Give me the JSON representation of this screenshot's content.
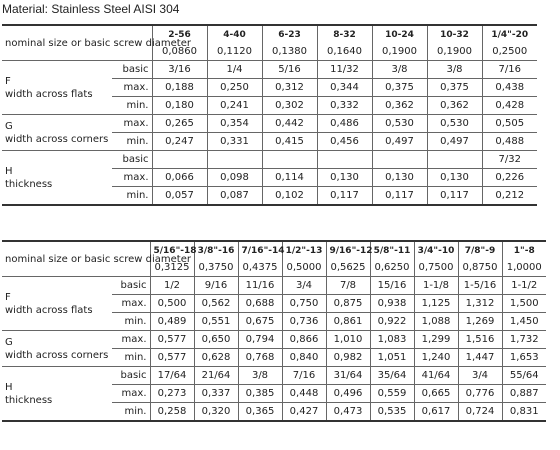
{
  "header": {
    "title": "Material: Stainless Steel AISI 304"
  },
  "tables": [
    {
      "header_label": "nominal size or basic screw diameter",
      "sizes": [
        "2-56",
        "4-40",
        "6-23",
        "8-32",
        "10-24",
        "10-32",
        "1/4\"-20"
      ],
      "diameters": [
        "0,0860",
        "0,1120",
        "0,1380",
        "0,1640",
        "0,1900",
        "0,1900",
        "0,2500"
      ],
      "groups": [
        {
          "label": "F",
          "description": "width across flats",
          "rows": [
            {
              "label": "basic",
              "values": [
                "3/16",
                "1/4",
                "5/16",
                "11/32",
                "3/8",
                "3/8",
                "7/16"
              ]
            },
            {
              "label": "max.",
              "values": [
                "0,188",
                "0,250",
                "0,312",
                "0,344",
                "0,375",
                "0,375",
                "0,438"
              ]
            },
            {
              "label": "min.",
              "values": [
                "0,180",
                "0,241",
                "0,302",
                "0,332",
                "0,362",
                "0,362",
                "0,428"
              ]
            }
          ]
        },
        {
          "label": "G",
          "description": "width across corners",
          "rows": [
            {
              "label": "max.",
              "values": [
                "0,265",
                "0,354",
                "0,442",
                "0,486",
                "0,530",
                "0,530",
                "0,505"
              ]
            },
            {
              "label": "min.",
              "values": [
                "0,247",
                "0,331",
                "0,415",
                "0,456",
                "0,497",
                "0,497",
                "0,488"
              ]
            }
          ]
        },
        {
          "label": "H",
          "description": "thickness",
          "rows": [
            {
              "label": "basic",
              "values": [
                null,
                null,
                null,
                null,
                null,
                null,
                "7/32"
              ]
            },
            {
              "label": "max.",
              "values": [
                "0,066",
                "0,098",
                "0,114",
                "0,130",
                "0,130",
                "0,130",
                "0,226"
              ]
            },
            {
              "label": "min.",
              "values": [
                "0,057",
                "0,087",
                "0,102",
                "0,117",
                "0,117",
                "0,117",
                "0,212"
              ]
            }
          ]
        }
      ]
    },
    {
      "header_label": "nominal size or basic screw diameter",
      "sizes": [
        "5/16\"-18",
        "3/8\"-16",
        "7/16\"-14",
        "1/2\"-13",
        "9/16\"-12",
        "5/8\"-11",
        "3/4\"-10",
        "7/8\"-9",
        "1\"-8"
      ],
      "diameters": [
        "0,3125",
        "0,3750",
        "0,4375",
        "0,5000",
        "0,5625",
        "0,6250",
        "0,7500",
        "0,8750",
        "1,0000"
      ],
      "groups": [
        {
          "label": "F",
          "description": "width across flats",
          "rows": [
            {
              "label": "basic",
              "values": [
                "1/2",
                "9/16",
                "11/16",
                "3/4",
                "7/8",
                "15/16",
                "1-1/8",
                "1-5/16",
                "1-1/2"
              ]
            },
            {
              "label": "max.",
              "values": [
                "0,500",
                "0,562",
                "0,688",
                "0,750",
                "0,875",
                "0,938",
                "1,125",
                "1,312",
                "1,500"
              ]
            },
            {
              "label": "min.",
              "values": [
                "0,489",
                "0,551",
                "0,675",
                "0,736",
                "0,861",
                "0,922",
                "1,088",
                "1,269",
                "1,450"
              ]
            }
          ]
        },
        {
          "label": "G",
          "description": "width across corners",
          "rows": [
            {
              "label": "max.",
              "values": [
                "0,577",
                "0,650",
                "0,794",
                "0,866",
                "1,010",
                "1,083",
                "1,299",
                "1,516",
                "1,732"
              ]
            },
            {
              "label": "min.",
              "values": [
                "0,577",
                "0,628",
                "0,768",
                "0,840",
                "0,982",
                "1,051",
                "1,240",
                "1,447",
                "1,653"
              ]
            }
          ]
        },
        {
          "label": "H",
          "description": "thickness",
          "rows": [
            {
              "label": "basic",
              "values": [
                "17/64",
                "21/64",
                "3/8",
                "7/16",
                "31/64",
                "35/64",
                "41/64",
                "3/4",
                "55/64"
              ]
            },
            {
              "label": "max.",
              "values": [
                "0,273",
                "0,337",
                "0,385",
                "0,448",
                "0,496",
                "0,559",
                "0,665",
                "0,776",
                "0,887"
              ]
            },
            {
              "label": "min.",
              "values": [
                "0,258",
                "0,320",
                "0,365",
                "0,427",
                "0,473",
                "0,535",
                "0,617",
                "0,724",
                "0,831"
              ]
            }
          ]
        }
      ]
    }
  ]
}
